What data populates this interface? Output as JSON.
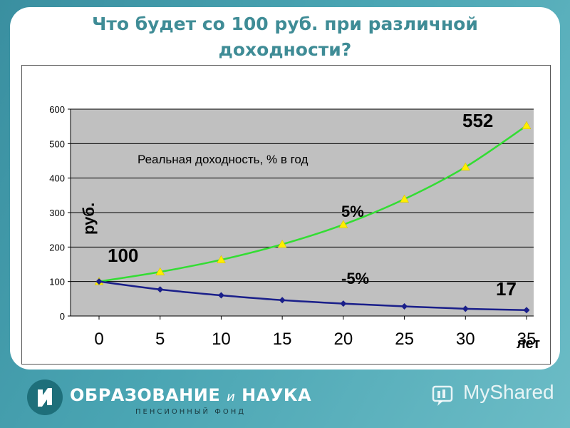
{
  "slide": {
    "title_line1": "Что будет со 100 руб. при различной",
    "title_line2": "доходности?"
  },
  "chart_data": {
    "type": "line",
    "x": [
      0,
      5,
      10,
      15,
      20,
      25,
      30,
      35
    ],
    "xlabel": "лет",
    "ylabel": "руб.",
    "ylim": [
      0,
      600
    ],
    "yticks": [
      0,
      100,
      200,
      300,
      400,
      500,
      600
    ],
    "grid": true,
    "annotations": {
      "subtitle": "Реальная доходность, % в год",
      "start_value": "100",
      "end_value_up": "552",
      "end_value_down": "17"
    },
    "series": [
      {
        "name": "5%",
        "color": "#33dd33",
        "marker": "triangle",
        "marker_color": "#ffee00",
        "values": [
          100,
          128,
          163,
          208,
          265,
          339,
          432,
          552
        ]
      },
      {
        "name": "-5%",
        "color": "#1a1f8a",
        "marker": "diamond",
        "marker_color": "#1a1f8a",
        "values": [
          100,
          77,
          60,
          46,
          36,
          28,
          21,
          17
        ]
      }
    ],
    "plot_bg": "#c0c0c0"
  },
  "footer": {
    "logo_main": "ОБРАЗОВАНИЕ",
    "logo_and": "и",
    "logo_main2": "НАУКА",
    "logo_sub": "ПЕНСИОННЫЙ ФОНД",
    "watermark": "MyShared"
  }
}
